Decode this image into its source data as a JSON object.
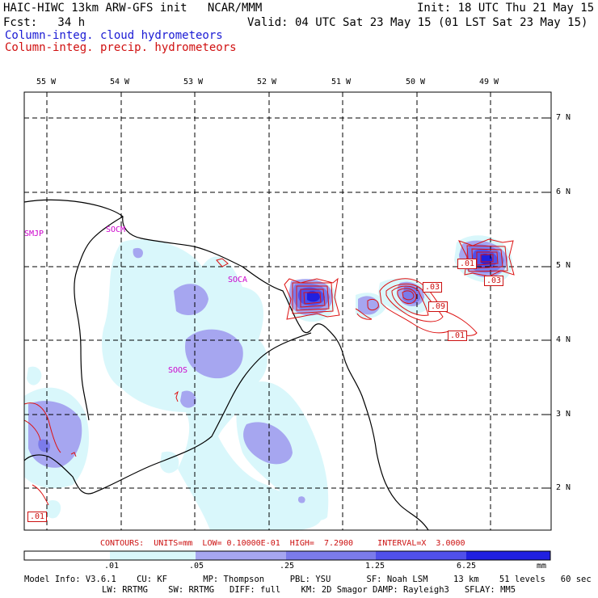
{
  "header": {
    "model": "HAIC-HIWC 13km ARW-GFS init   NCAR/MMM",
    "init": "Init: 18 UTC Thu 21 May 15",
    "fcst": "Fcst:   34 h",
    "valid": "Valid: 04 UTC Sat 23 May 15 (01 LST Sat 23 May 15)",
    "field1": "Column-integ. cloud hydrometeors",
    "field2": "Column-integ. precip. hydrometeors"
  },
  "map": {
    "longitude_labels": [
      "55 W",
      "54 W",
      "53 W",
      "52 W",
      "51 W",
      "50 W",
      "49 W"
    ],
    "latitude_labels": [
      "7 N",
      "6 N",
      "5 N",
      "4 N",
      "3 N",
      "2 N"
    ],
    "sites": [
      "SMJP",
      "SOCM",
      "SOCA",
      "SOOS"
    ],
    "contour_labels": [
      ".01",
      ".03",
      ".09",
      ".01",
      ".03",
      ".01"
    ],
    "colors": {
      "level1": "#d9f7fb",
      "level2": "#a6a6f0",
      "level3": "#7b7bea",
      "level4": "#5050ea",
      "level5": "#2020e0",
      "contour": "#dd1111"
    }
  },
  "contours_line": "CONTOURS:  UNITS=mm  LOW= 0.10000E-01  HIGH=  7.2900     INTERVAL=X  3.0000",
  "colorbar": {
    "ticks": [
      ".01",
      ".05",
      ".25",
      "1.25",
      "6.25"
    ],
    "unit": "mm"
  },
  "model_info": {
    "line1": "Model Info: V3.6.1    CU: KF       MP: Thompson     PBL: YSU       SF: Noah LSM     13 km    51 levels   60 sec",
    "line2": "LW: RRTMG    SW: RRTMG   DIFF: full    KM: 2D Smagor DAMP: Rayleigh3   SFLAY: MM5"
  }
}
